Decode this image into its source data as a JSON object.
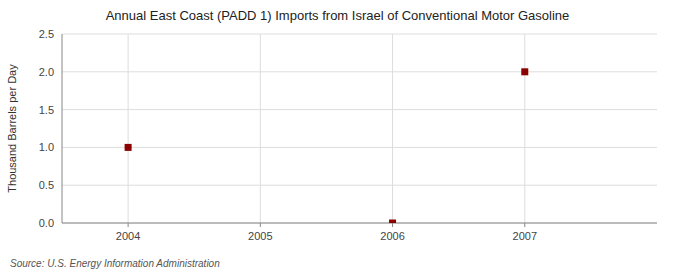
{
  "chart_data": {
    "type": "scatter",
    "title": "Annual East Coast (PADD 1) Imports from Israel of Conventional Motor Gasoline",
    "y_label": "Thousand Barrels per Day",
    "source": "Source: U.S. Energy Information Administration",
    "x": [
      2004,
      2006,
      2007
    ],
    "values": [
      1.0,
      0.0,
      2.0
    ],
    "color": "#8b0000",
    "marker": "square",
    "xlim": [
      2003.5,
      2008.0
    ],
    "ylim": [
      0.0,
      2.5
    ],
    "xticks": [
      2004,
      2005,
      2006,
      2007
    ],
    "yticks": [
      {
        "value": 0.0,
        "label": "0.0"
      },
      {
        "value": 0.5,
        "label": "0.5"
      },
      {
        "value": 1.0,
        "label": "1.0"
      },
      {
        "value": 1.5,
        "label": "1.5"
      },
      {
        "value": 2.0,
        "label": "2.0"
      },
      {
        "value": 2.5,
        "label": "2.5"
      }
    ],
    "grid": true
  }
}
